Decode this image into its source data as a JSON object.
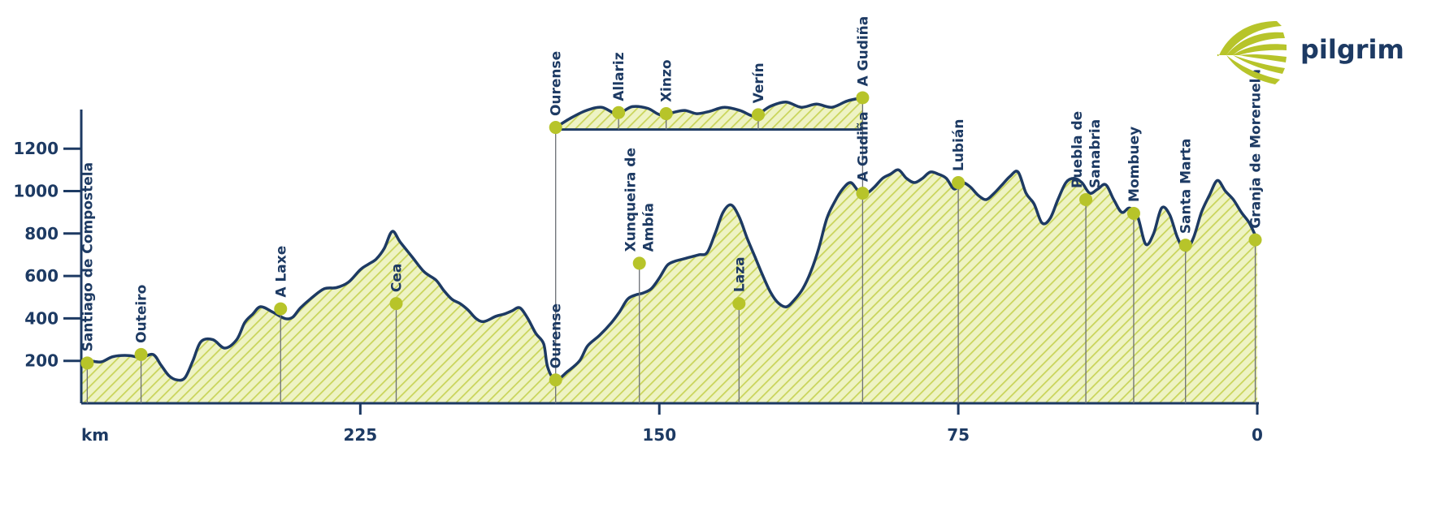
{
  "brand": {
    "name": "pilgrim",
    "accent": "#b7c42a",
    "ink": "#1d3a63",
    "fill": "#e8efae"
  },
  "chart_data": {
    "type": "area",
    "title": "",
    "xlabel": "km",
    "ylabel": "",
    "xlim": [
      295,
      0
    ],
    "ylim": [
      0,
      1380
    ],
    "x_ticks": [
      225,
      150,
      75,
      0
    ],
    "y_ticks": [
      200,
      400,
      600,
      800,
      1000,
      1200
    ],
    "grid": false,
    "main_profile": [
      [
        295,
        190
      ],
      [
        293,
        200
      ],
      [
        290,
        195
      ],
      [
        287,
        220
      ],
      [
        283,
        225
      ],
      [
        280,
        215
      ],
      [
        277,
        230
      ],
      [
        275,
        180
      ],
      [
        273,
        130
      ],
      [
        271,
        110
      ],
      [
        269,
        120
      ],
      [
        267,
        200
      ],
      [
        265,
        290
      ],
      [
        262,
        300
      ],
      [
        259,
        260
      ],
      [
        256,
        300
      ],
      [
        254,
        380
      ],
      [
        252,
        420
      ],
      [
        250,
        455
      ],
      [
        247,
        430
      ],
      [
        244,
        400
      ],
      [
        242,
        405
      ],
      [
        240,
        450
      ],
      [
        237,
        500
      ],
      [
        234,
        540
      ],
      [
        231,
        545
      ],
      [
        228,
        570
      ],
      [
        225,
        630
      ],
      [
        223,
        655
      ],
      [
        221,
        680
      ],
      [
        219,
        730
      ],
      [
        217,
        810
      ],
      [
        215,
        760
      ],
      [
        212,
        690
      ],
      [
        209,
        620
      ],
      [
        206,
        580
      ],
      [
        204,
        530
      ],
      [
        202,
        490
      ],
      [
        200,
        470
      ],
      [
        198,
        440
      ],
      [
        196,
        400
      ],
      [
        194,
        385
      ],
      [
        191,
        410
      ],
      [
        189,
        420
      ],
      [
        187,
        435
      ],
      [
        185,
        450
      ],
      [
        183,
        400
      ],
      [
        181,
        330
      ],
      [
        179,
        280
      ],
      [
        178,
        170
      ],
      [
        176,
        110
      ],
      [
        173,
        150
      ],
      [
        170,
        200
      ],
      [
        168,
        270
      ],
      [
        165,
        320
      ],
      [
        162,
        380
      ],
      [
        160,
        430
      ],
      [
        158,
        490
      ],
      [
        156,
        510
      ],
      [
        154,
        520
      ],
      [
        152,
        540
      ],
      [
        150,
        590
      ],
      [
        148,
        650
      ],
      [
        146,
        670
      ],
      [
        144,
        680
      ],
      [
        142,
        690
      ],
      [
        140,
        700
      ],
      [
        138,
        710
      ],
      [
        136,
        800
      ],
      [
        134,
        900
      ],
      [
        132,
        935
      ],
      [
        130,
        880
      ],
      [
        128,
        780
      ],
      [
        126,
        690
      ],
      [
        124,
        600
      ],
      [
        122,
        520
      ],
      [
        120,
        470
      ],
      [
        118,
        455
      ],
      [
        116,
        490
      ],
      [
        114,
        540
      ],
      [
        112,
        620
      ],
      [
        110,
        730
      ],
      [
        108,
        870
      ],
      [
        106,
        950
      ],
      [
        104,
        1010
      ],
      [
        102,
        1040
      ],
      [
        100,
        1000
      ],
      [
        98,
        990
      ],
      [
        96,
        1020
      ],
      [
        94,
        1060
      ],
      [
        92,
        1080
      ],
      [
        90,
        1100
      ],
      [
        88,
        1060
      ],
      [
        86,
        1040
      ],
      [
        84,
        1060
      ],
      [
        82,
        1090
      ],
      [
        80,
        1080
      ],
      [
        78,
        1060
      ],
      [
        76,
        1010
      ],
      [
        74,
        1040
      ],
      [
        72,
        1020
      ],
      [
        70,
        980
      ],
      [
        68,
        960
      ],
      [
        66,
        990
      ],
      [
        64,
        1030
      ],
      [
        62,
        1070
      ],
      [
        60,
        1090
      ],
      [
        58,
        990
      ],
      [
        56,
        940
      ],
      [
        54,
        850
      ],
      [
        52,
        870
      ],
      [
        50,
        960
      ],
      [
        48,
        1040
      ],
      [
        46,
        1060
      ],
      [
        44,
        1040
      ],
      [
        42,
        990
      ],
      [
        40,
        1010
      ],
      [
        38,
        1030
      ],
      [
        36,
        960
      ],
      [
        34,
        900
      ],
      [
        32,
        920
      ],
      [
        30,
        880
      ],
      [
        28,
        750
      ],
      [
        26,
        800
      ],
      [
        24,
        920
      ],
      [
        22,
        890
      ],
      [
        20,
        780
      ],
      [
        18,
        720
      ],
      [
        16,
        780
      ],
      [
        14,
        900
      ],
      [
        12,
        980
      ],
      [
        10,
        1050
      ],
      [
        8,
        1000
      ],
      [
        6,
        960
      ],
      [
        4,
        900
      ],
      [
        2,
        850
      ],
      [
        0,
        770
      ]
    ],
    "inset_profile": [
      [
        0.0,
        1300
      ],
      [
        0.05,
        1345
      ],
      [
        0.1,
        1380
      ],
      [
        0.15,
        1395
      ],
      [
        0.2,
        1365
      ],
      [
        0.25,
        1398
      ],
      [
        0.3,
        1390
      ],
      [
        0.34,
        1360
      ],
      [
        0.38,
        1370
      ],
      [
        0.42,
        1380
      ],
      [
        0.46,
        1365
      ],
      [
        0.5,
        1375
      ],
      [
        0.55,
        1395
      ],
      [
        0.6,
        1380
      ],
      [
        0.64,
        1355
      ],
      [
        0.66,
        1362
      ],
      [
        0.7,
        1400
      ],
      [
        0.75,
        1420
      ],
      [
        0.8,
        1395
      ],
      [
        0.85,
        1410
      ],
      [
        0.9,
        1395
      ],
      [
        0.95,
        1425
      ],
      [
        1.0,
        1440
      ]
    ],
    "inset_baseline": 1290,
    "waypoints": [
      {
        "name": "Santiago de Compostela",
        "km": 293.5,
        "elev": 190
      },
      {
        "name": "Outeiro",
        "km": 280,
        "elev": 230
      },
      {
        "name": "A Laxe",
        "km": 245,
        "elev": 445
      },
      {
        "name": "Cea",
        "km": 216,
        "elev": 470
      },
      {
        "name": "Ourense",
        "km": 176,
        "elev": 110
      },
      {
        "name": "Xunqueira de Ambía",
        "km": 155,
        "elev": 660
      },
      {
        "name": "Laza",
        "km": 130,
        "elev": 470
      },
      {
        "name": "A Gudiña",
        "km": 99,
        "elev": 990
      },
      {
        "name": "Lubián",
        "km": 75,
        "elev": 1040
      },
      {
        "name": "Puebla de Sanabria",
        "km": 43,
        "elev": 960
      },
      {
        "name": "Mombuey",
        "km": 31,
        "elev": 895
      },
      {
        "name": "Santa Marta",
        "km": 18,
        "elev": 745
      },
      {
        "name": "Granja de Moreruela",
        "km": 0.5,
        "elev": 770
      }
    ],
    "inset_waypoints": [
      {
        "name": "Ourense",
        "t": 0.0,
        "elev": 1300
      },
      {
        "name": "Allariz",
        "t": 0.205,
        "elev": 1370
      },
      {
        "name": "Xinzo",
        "t": 0.36,
        "elev": 1365
      },
      {
        "name": "Verín",
        "t": 0.66,
        "elev": 1360
      },
      {
        "name": "A Gudiña",
        "t": 1.0,
        "elev": 1440
      }
    ]
  }
}
